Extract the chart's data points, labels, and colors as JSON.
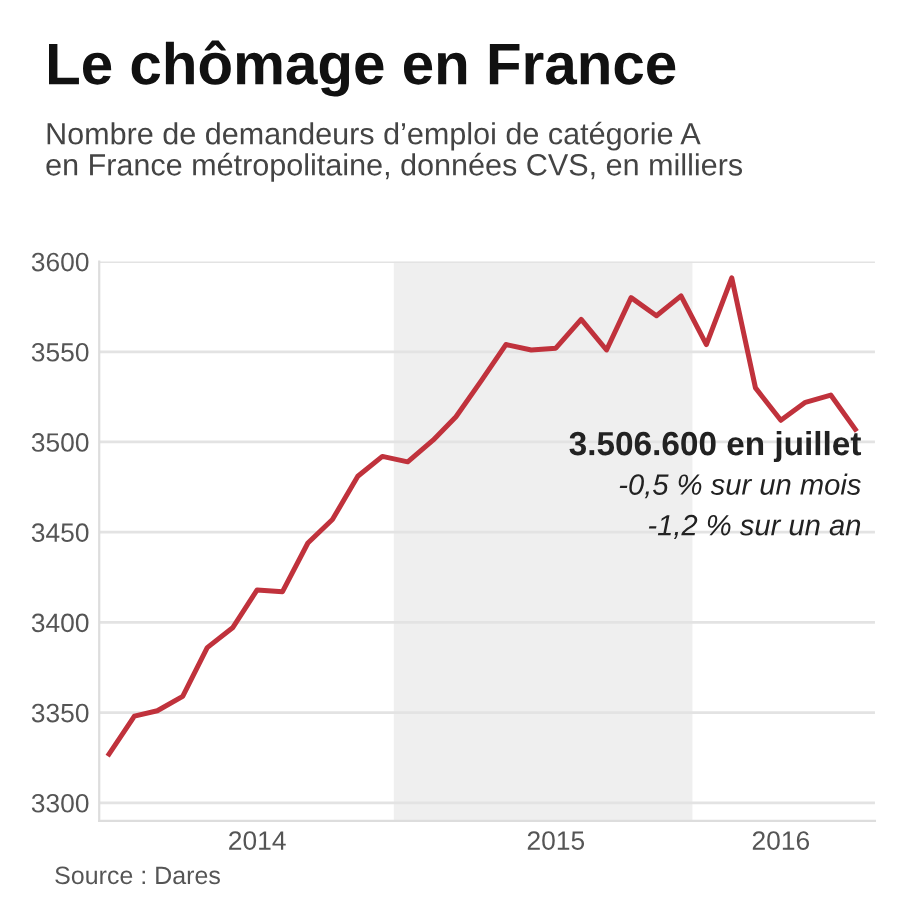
{
  "chart_data": {
    "type": "line",
    "title": "Le chômage en France",
    "subtitle": "Nombre de demandeurs d’emploi de catégorie A\nen France métropolitaine, données CVS, en milliers",
    "x": [
      "2014-01",
      "2014-02",
      "2014-03",
      "2014-04",
      "2014-05",
      "2014-06",
      "2014-07",
      "2014-08",
      "2014-09",
      "2014-10",
      "2014-11",
      "2014-12",
      "2015-01",
      "2015-02",
      "2015-03",
      "2015-04",
      "2015-05",
      "2015-06",
      "2015-07",
      "2015-08",
      "2015-09",
      "2015-10",
      "2015-11",
      "2015-12",
      "2016-01",
      "2016-02",
      "2016-03",
      "2016-04",
      "2016-05",
      "2016-06",
      "2016-07"
    ],
    "series": [
      {
        "color": "#c0323c",
        "values": [
          3327,
          3348,
          3351,
          3359,
          3386,
          3397,
          3418,
          3417,
          3444,
          3457,
          3481,
          3492,
          3489,
          3501,
          3514,
          3534,
          3554,
          3551,
          3552,
          3568,
          3551,
          3580,
          3570,
          3581,
          3554,
          3591,
          3530,
          3512,
          3522,
          3526,
          3507
        ]
      }
    ],
    "xlim": [
      "2013-12-20",
      "2016-07-25"
    ],
    "xticks": [
      {
        "value": "2014-07",
        "label": "2014"
      },
      {
        "value": "2015-07",
        "label": "2015"
      },
      {
        "value": "2016-04",
        "label": "2016"
      }
    ],
    "ylim": [
      3290,
      3600
    ],
    "yticks": [
      3300,
      3350,
      3400,
      3450,
      3500,
      3550,
      3600
    ],
    "grid": "y",
    "legend": false,
    "marker": "none",
    "line_style": "solid",
    "bands": [
      {
        "axis": "x",
        "from": "2014-12-15",
        "to": "2015-12-15",
        "color": "#efefef"
      }
    ],
    "annotations": [
      "3.506.600 en juillet",
      "-0,5 % sur un mois",
      "-1,2 % sur un an",
      "Source : Dares"
    ]
  }
}
